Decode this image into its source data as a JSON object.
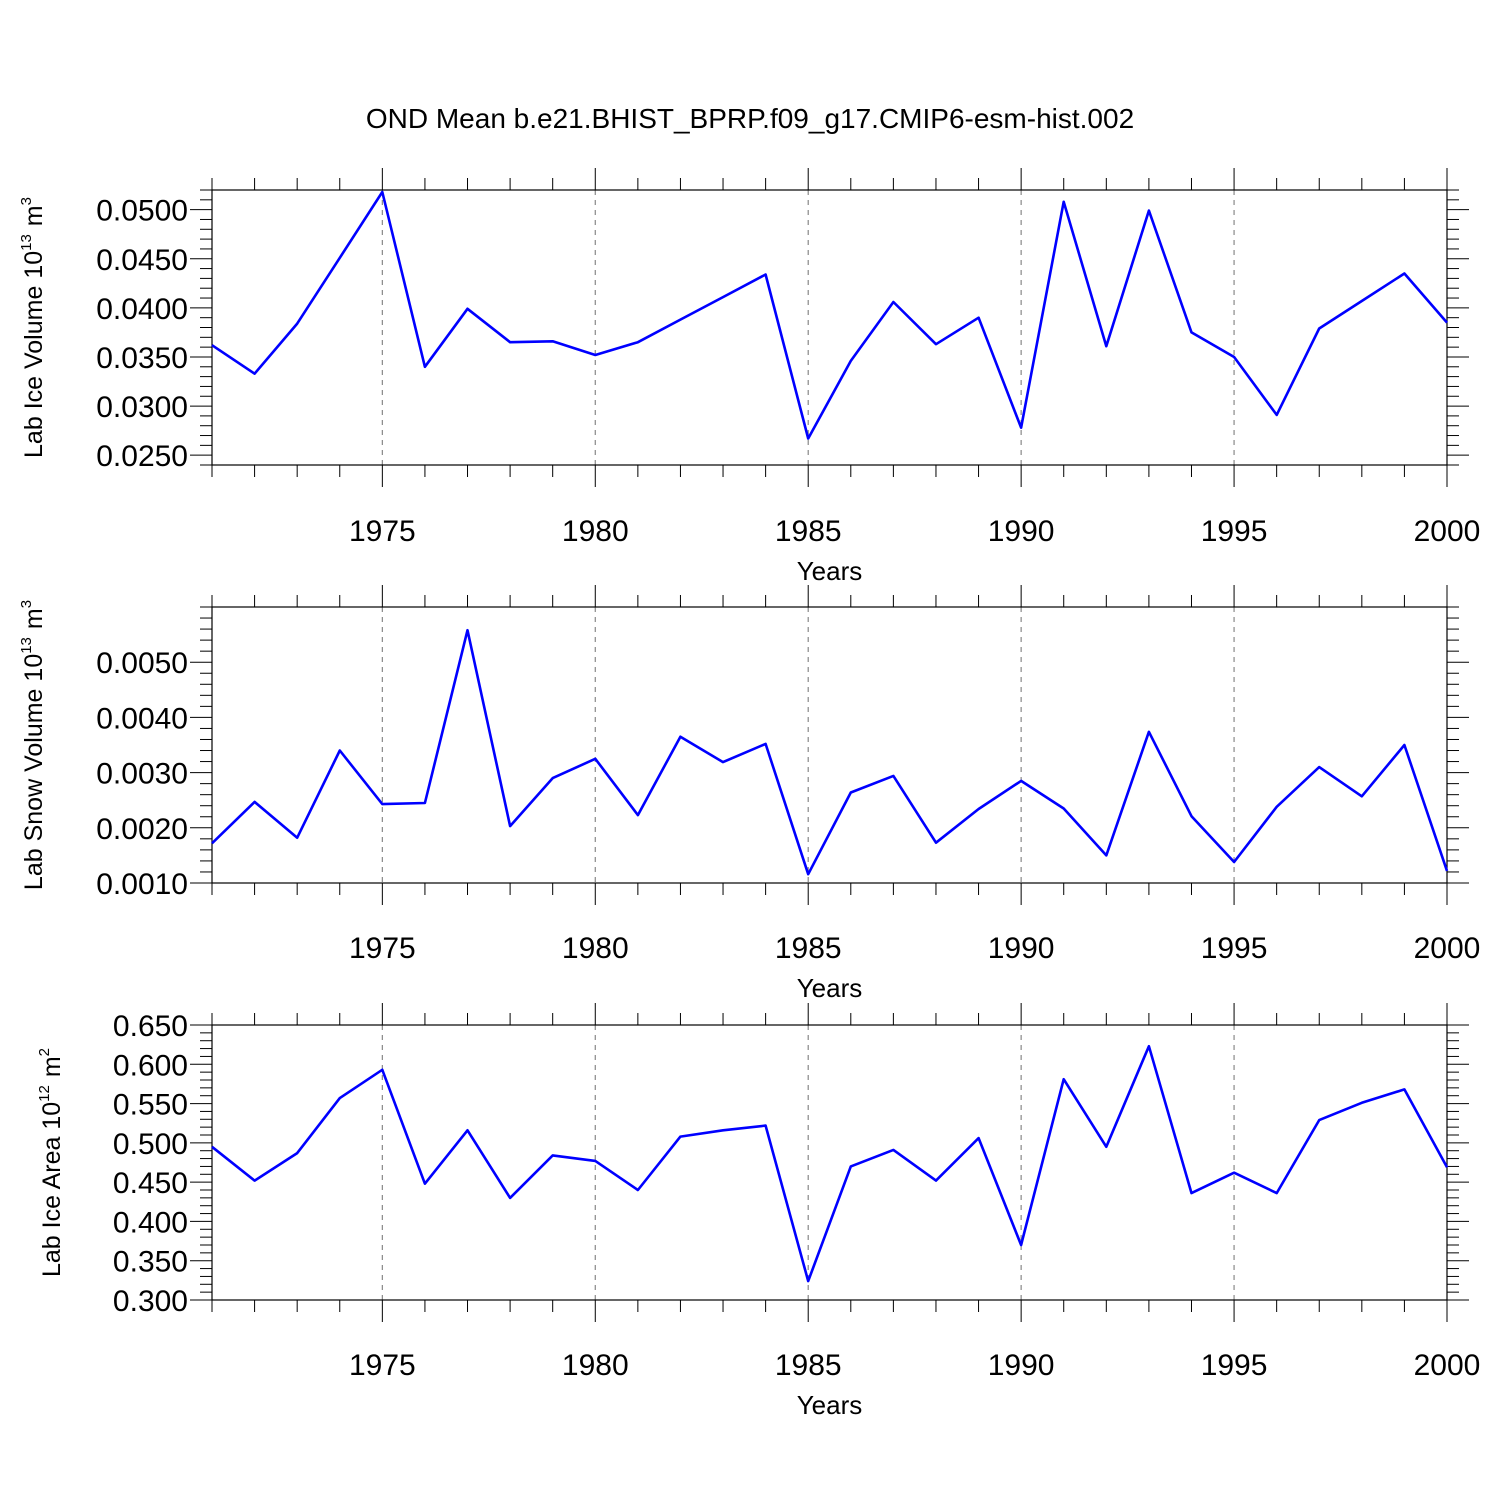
{
  "title": "OND Mean b.e21.BHIST_BPRP.f09_g17.CMIP6-esm-hist.002",
  "line_color": "#0000ff",
  "chart_data": [
    {
      "type": "line",
      "xlabel": "Years",
      "ylabel": "Lab Ice Volume 10",
      "ylabel_exp": "13",
      "ylabel_unit": "m",
      "ylabel_unit_exp": "3",
      "xlim": [
        1971,
        2000
      ],
      "ylim": [
        0.024,
        0.052
      ],
      "xticks": [
        "1975",
        "1980",
        "1985",
        "1990",
        "1995",
        "2000"
      ],
      "yticks": [
        "0.0250",
        "0.0300",
        "0.0350",
        "0.0400",
        "0.0450",
        "0.0500"
      ],
      "grid": "dashed vertical at major x ticks",
      "series": [
        {
          "x": [
            1971,
            1972,
            1973,
            1974,
            1975,
            1976,
            1977,
            1978,
            1979,
            1980,
            1981,
            1982,
            1983,
            1984,
            1985,
            1986,
            1987,
            1988,
            1989,
            1990,
            1991,
            1992,
            1993,
            1994,
            1995,
            1996,
            1997,
            1998,
            1999,
            2000
          ],
          "values": [
            0.0362,
            0.0333,
            0.0384,
            0.0451,
            0.0518,
            0.034,
            0.0399,
            0.0365,
            0.0366,
            0.0352,
            0.0365,
            0.0388,
            0.0411,
            0.0434,
            0.0267,
            0.0346,
            0.0406,
            0.0363,
            0.039,
            0.0278,
            0.0508,
            0.0361,
            0.0499,
            0.0375,
            0.035,
            0.0291,
            0.0379,
            0.0407,
            0.0435,
            0.0385
          ]
        }
      ]
    },
    {
      "type": "line",
      "xlabel": "Years",
      "ylabel": "Lab Snow Volume 10",
      "ylabel_exp": "13",
      "ylabel_unit": "m",
      "ylabel_unit_exp": "3",
      "xlim": [
        1971,
        2000
      ],
      "ylim": [
        0.001,
        0.006
      ],
      "xticks": [
        "1975",
        "1980",
        "1985",
        "1990",
        "1995",
        "2000"
      ],
      "yticks": [
        "0.0010",
        "0.0020",
        "0.0030",
        "0.0040",
        "0.0050"
      ],
      "grid": "dashed vertical at major x ticks",
      "series": [
        {
          "x": [
            1971,
            1972,
            1973,
            1974,
            1975,
            1976,
            1977,
            1978,
            1979,
            1980,
            1981,
            1982,
            1983,
            1984,
            1985,
            1986,
            1987,
            1988,
            1989,
            1990,
            1991,
            1992,
            1993,
            1994,
            1995,
            1996,
            1997,
            1998,
            1999,
            2000
          ],
          "values": [
            0.00172,
            0.00247,
            0.00182,
            0.0034,
            0.00243,
            0.00245,
            0.00558,
            0.00203,
            0.0029,
            0.00325,
            0.00223,
            0.00365,
            0.00319,
            0.00352,
            0.00116,
            0.00264,
            0.00294,
            0.00173,
            0.00234,
            0.00285,
            0.00235,
            0.0015,
            0.00374,
            0.00221,
            0.00138,
            0.00238,
            0.0031,
            0.00257,
            0.0035,
            0.00122
          ]
        }
      ]
    },
    {
      "type": "line",
      "xlabel": "Years",
      "ylabel": "Lab Ice Area 10",
      "ylabel_exp": "12",
      "ylabel_unit": "m",
      "ylabel_unit_exp": "2",
      "xlim": [
        1971,
        2000
      ],
      "ylim": [
        0.3,
        0.65
      ],
      "xticks": [
        "1975",
        "1980",
        "1985",
        "1990",
        "1995",
        "2000"
      ],
      "yticks": [
        "0.300",
        "0.350",
        "0.400",
        "0.450",
        "0.500",
        "0.550",
        "0.600",
        "0.650"
      ],
      "grid": "dashed vertical at major x ticks",
      "series": [
        {
          "x": [
            1971,
            1972,
            1973,
            1974,
            1975,
            1976,
            1977,
            1978,
            1979,
            1980,
            1981,
            1982,
            1983,
            1984,
            1985,
            1986,
            1987,
            1988,
            1989,
            1990,
            1991,
            1992,
            1993,
            1994,
            1995,
            1996,
            1997,
            1998,
            1999,
            2000
          ],
          "values": [
            0.495,
            0.452,
            0.487,
            0.557,
            0.593,
            0.448,
            0.516,
            0.43,
            0.484,
            0.477,
            0.44,
            0.508,
            0.516,
            0.522,
            0.324,
            0.47,
            0.491,
            0.452,
            0.506,
            0.37,
            0.581,
            0.495,
            0.623,
            0.436,
            0.462,
            0.436,
            0.529,
            0.551,
            0.568,
            0.469
          ]
        }
      ]
    }
  ]
}
